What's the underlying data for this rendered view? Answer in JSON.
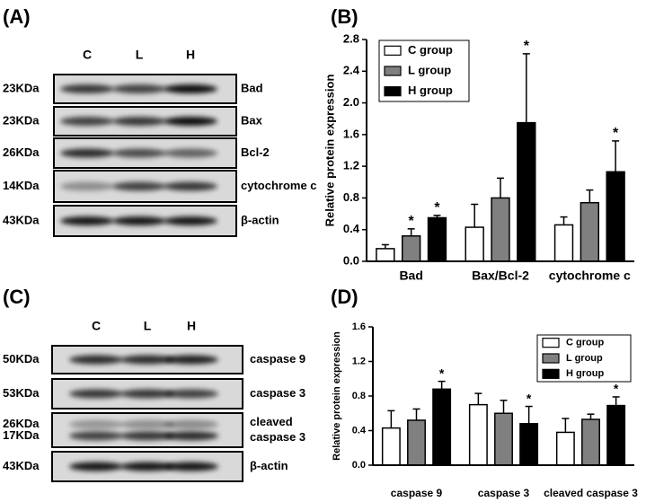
{
  "blot_a": {
    "panel_label": "(A)",
    "lanes": [
      "C",
      "L",
      "H"
    ],
    "rows": [
      {
        "sizes": [
          "23KDa"
        ],
        "protein": [
          "Bad"
        ]
      },
      {
        "sizes": [
          "23KDa"
        ],
        "protein": [
          "Bax"
        ]
      },
      {
        "sizes": [
          "26KDa"
        ],
        "protein": [
          "Bcl-2"
        ]
      },
      {
        "sizes": [
          "14KDa"
        ],
        "protein": [
          "cytochrome c"
        ]
      },
      {
        "sizes": [
          "43KDa"
        ],
        "protein": [
          "β-actin"
        ]
      }
    ]
  },
  "blot_c": {
    "panel_label": "(C)",
    "lanes": [
      "C",
      "L",
      "H"
    ],
    "rows": [
      {
        "sizes": [
          "50KDa"
        ],
        "protein": [
          "caspase 9"
        ]
      },
      {
        "sizes": [
          "53KDa"
        ],
        "protein": [
          "caspase 3"
        ]
      },
      {
        "sizes": [
          "26KDa",
          "17KDa"
        ],
        "protein": [
          "cleaved",
          "caspase 3"
        ]
      },
      {
        "sizes": [
          "43KDa"
        ],
        "protein": [
          "β-actin"
        ]
      }
    ]
  },
  "chart_data": [
    {
      "type": "bar",
      "panel_label": "(B)",
      "y_label": "Relative protein expression",
      "categories": [
        "Bad",
        "Bax/Bcl-2",
        "cytochrome c"
      ],
      "series": [
        {
          "name": "C group",
          "color": "#ffffff",
          "values": [
            0.16,
            0.43,
            0.46
          ],
          "errors": [
            0.05,
            0.29,
            0.1
          ],
          "significance": [
            null,
            null,
            null
          ]
        },
        {
          "name": "L group",
          "color": "#808080",
          "values": [
            0.32,
            0.8,
            0.74
          ],
          "errors": [
            0.09,
            0.25,
            0.16
          ],
          "significance": [
            "*",
            null,
            null
          ]
        },
        {
          "name": "H group",
          "color": "#000000",
          "values": [
            0.55,
            1.75,
            1.13
          ],
          "errors": [
            0.03,
            0.87,
            0.39
          ],
          "significance": [
            "*",
            "*",
            "*"
          ]
        }
      ],
      "ylim": [
        0,
        2.8
      ],
      "yticks": [
        {
          "value": 0,
          "label": "0.0"
        },
        0.4,
        0.8,
        1.2,
        1.6,
        {
          "value": 2,
          "label": "2.0"
        },
        2.4,
        2.8
      ]
    },
    {
      "type": "bar",
      "panel_label": "(D)",
      "y_label": "Relative protein expression",
      "categories": [
        "caspase 9",
        "caspase 3",
        "cleaved caspase 3"
      ],
      "series": [
        {
          "name": "C group",
          "color": "#ffffff",
          "values": [
            0.43,
            0.7,
            0.38
          ],
          "errors": [
            0.2,
            0.13,
            0.16
          ],
          "significance": [
            null,
            null,
            null
          ]
        },
        {
          "name": "L group",
          "color": "#808080",
          "values": [
            0.52,
            0.6,
            0.53
          ],
          "errors": [
            0.13,
            0.15,
            0.06
          ],
          "significance": [
            null,
            null,
            null
          ]
        },
        {
          "name": "H group",
          "color": "#000000",
          "values": [
            0.88,
            0.48,
            0.69
          ],
          "errors": [
            0.09,
            0.2,
            0.1
          ],
          "significance": [
            "*",
            "*",
            "*"
          ]
        }
      ],
      "ylim": [
        0,
        1.6
      ],
      "yticks": [
        {
          "value": 0,
          "label": "0.0"
        },
        0.4,
        0.8,
        1.2,
        1.6
      ]
    }
  ]
}
